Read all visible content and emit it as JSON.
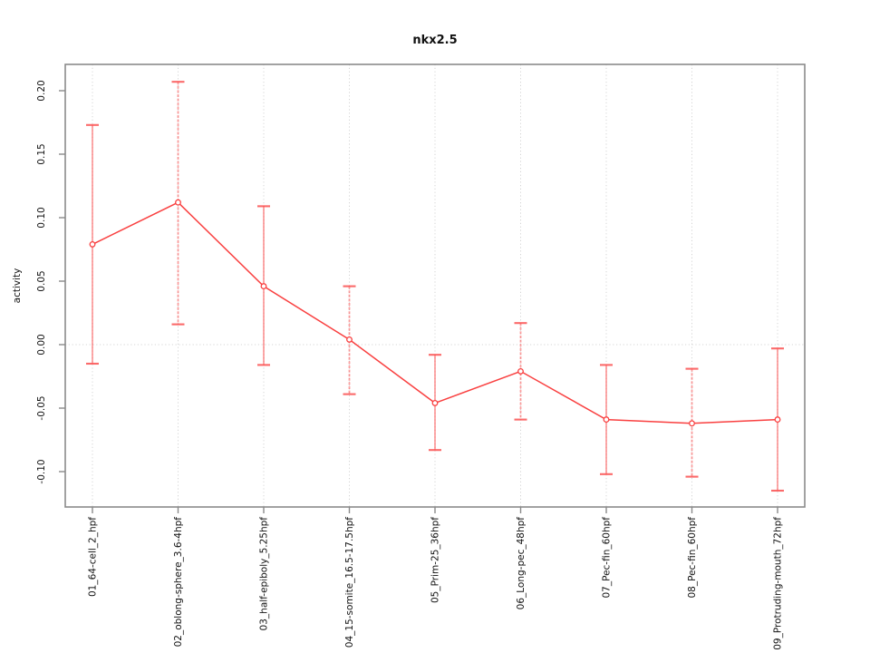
{
  "chart_data": {
    "type": "line",
    "title": "nkx2.5",
    "xlabel": "",
    "ylabel": "activity",
    "legend": null,
    "grid": {
      "vertical_dotted_at_each_category": true,
      "horizontal_dotted_at_zero": true
    },
    "categories": [
      "01_64-cell_2_hpf",
      "02_oblong-sphere_3.6-4hpf",
      "03_half-epiboly_5.25hpf",
      "04_15-somite_16.5-17.5hpf",
      "05_Prim-25_36hpf",
      "06_Long-pec_48hpf",
      "07_Pec-fin_60hpf",
      "08_Pec-fin_60hpf",
      "09_Protruding-mouth_72hpf"
    ],
    "series": [
      {
        "name": "activity",
        "marker": "open-circle",
        "values": [
          0.079,
          0.112,
          0.046,
          0.004,
          -0.046,
          -0.021,
          -0.059,
          -0.062,
          -0.059
        ],
        "error_high": [
          0.173,
          0.207,
          0.109,
          0.046,
          -0.008,
          0.017,
          -0.016,
          -0.019,
          -0.003
        ],
        "error_low": [
          -0.015,
          0.016,
          -0.016,
          -0.039,
          -0.083,
          -0.059,
          -0.102,
          -0.104,
          -0.115
        ]
      }
    ],
    "y_axis": {
      "ticks": [
        0.2,
        0.15,
        0.1,
        0.05,
        0.0,
        -0.05,
        -0.1
      ],
      "tick_labels": [
        "0.20",
        "0.15",
        "0.10",
        "0.05",
        "0.00",
        "-0.05",
        "-0.10"
      ],
      "ylim": [
        -0.128,
        0.221
      ]
    },
    "colors": {
      "series": "#f94040",
      "error_stem": "rgba(252,95,95,0.6)",
      "error_cap": "rgba(250,80,80,0.85)",
      "box": "#8a8a8a",
      "gridline": "#d4d4d4",
      "text": "#111111",
      "background": "#ffffff"
    }
  }
}
